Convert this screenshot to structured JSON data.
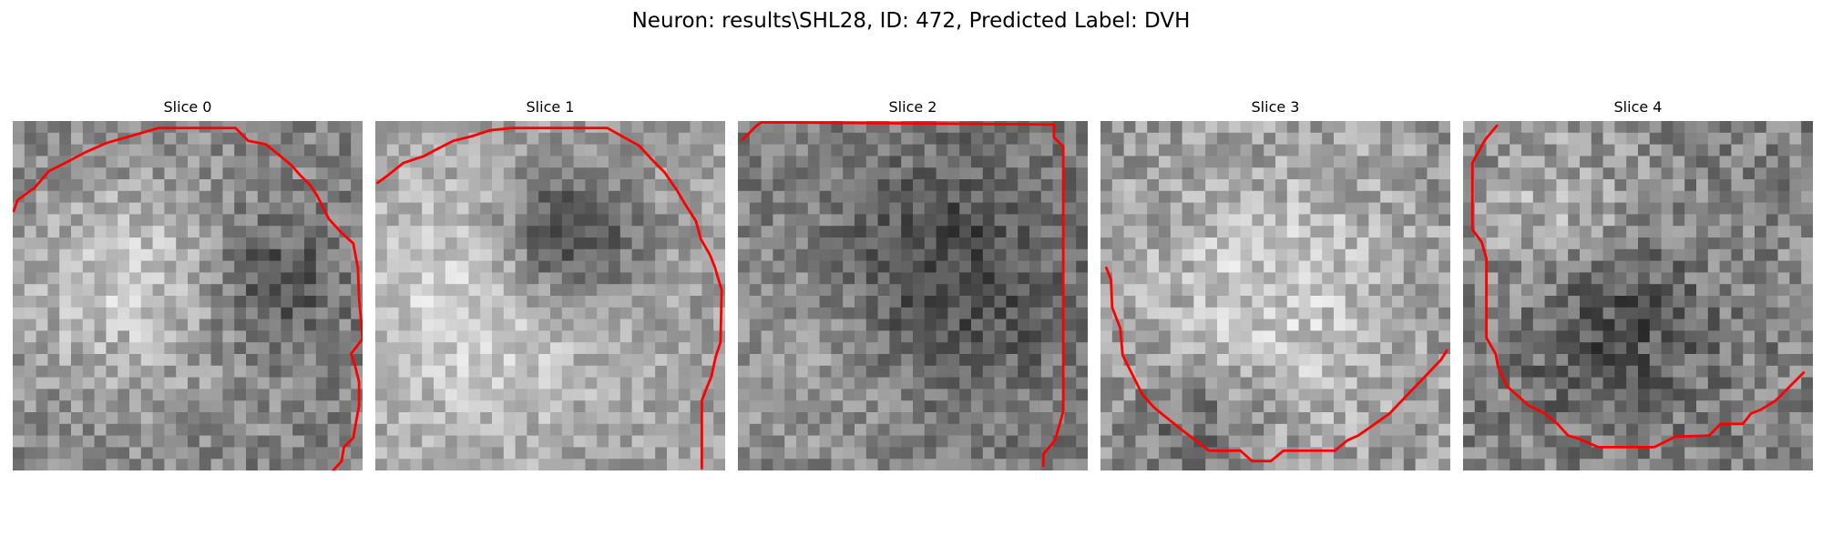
{
  "title": "Neuron: results\\SHL28, ID: 472, Predicted Label: DVH",
  "panels": [
    {
      "label": "Slice 0",
      "contour_color": "#ff0000",
      "image": {
        "cells": 30,
        "bright_center": [
          0.32,
          0.47
        ],
        "bright_radius": 0.23,
        "bright_level": 0.78,
        "dark_center": [
          0.74,
          0.47
        ],
        "dark_radius": 0.13,
        "dark_level": 0.28,
        "background_level": 0.52,
        "noise": 0.32,
        "seed": 17
      },
      "contour": [
        [
          1,
          77
        ],
        [
          4,
          68
        ],
        [
          19,
          57
        ],
        [
          31,
          43
        ],
        [
          43,
          37
        ],
        [
          62,
          27
        ],
        [
          80,
          19
        ],
        [
          125,
          6
        ],
        [
          191,
          6
        ],
        [
          202,
          17
        ],
        [
          217,
          20
        ],
        [
          227,
          28
        ],
        [
          239,
          38
        ],
        [
          247,
          47
        ],
        [
          255,
          55
        ],
        [
          261,
          64
        ],
        [
          266,
          74
        ],
        [
          271,
          84
        ],
        [
          282,
          96
        ],
        [
          292,
          105
        ],
        [
          296,
          126
        ],
        [
          297,
          152
        ],
        [
          300,
          187
        ],
        [
          290,
          200
        ],
        [
          293,
          208
        ],
        [
          297,
          224
        ],
        [
          297,
          244
        ],
        [
          292,
          272
        ],
        [
          284,
          280
        ],
        [
          282,
          292
        ],
        [
          273,
          302
        ]
      ]
    },
    {
      "label": "Slice 1",
      "contour_color": "#ff0000",
      "image": {
        "cells": 30,
        "bright_center": [
          0.3,
          0.52
        ],
        "bright_radius": 0.27,
        "bright_level": 0.84,
        "dark_center": [
          0.55,
          0.33
        ],
        "dark_radius": 0.14,
        "dark_level": 0.18,
        "background_level": 0.62,
        "noise": 0.28,
        "seed": 29
      },
      "contour": [
        [
          2,
          53
        ],
        [
          9,
          48
        ],
        [
          24,
          36
        ],
        [
          42,
          30
        ],
        [
          53,
          24
        ],
        [
          67,
          17
        ],
        [
          83,
          13
        ],
        [
          98,
          8
        ],
        [
          117,
          6
        ],
        [
          199,
          6
        ],
        [
          215,
          15
        ],
        [
          226,
          21
        ],
        [
          239,
          35
        ],
        [
          248,
          44
        ],
        [
          259,
          60
        ],
        [
          266,
          72
        ],
        [
          275,
          86
        ],
        [
          279,
          101
        ],
        [
          287,
          115
        ],
        [
          291,
          125
        ],
        [
          297,
          145
        ],
        [
          296,
          190
        ],
        [
          292,
          202
        ],
        [
          288,
          220
        ],
        [
          285,
          227
        ],
        [
          280,
          240
        ],
        [
          280,
          298
        ]
      ]
    },
    {
      "label": "Slice 2",
      "contour_color": "#ff0000",
      "image": {
        "cells": 30,
        "bright_center": [
          0.22,
          0.7
        ],
        "bright_radius": 0.22,
        "bright_level": 0.62,
        "dark_center": [
          0.61,
          0.45
        ],
        "dark_radius": 0.23,
        "dark_level": 0.26,
        "background_level": 0.5,
        "noise": 0.3,
        "seed": 41
      },
      "contour": [
        [
          4,
          16
        ],
        [
          15,
          5
        ],
        [
          20,
          1
        ],
        [
          271,
          3
        ],
        [
          271,
          14
        ],
        [
          279,
          22
        ],
        [
          279,
          249
        ],
        [
          276,
          260
        ],
        [
          272,
          274
        ],
        [
          262,
          286
        ],
        [
          262,
          296
        ]
      ]
    },
    {
      "label": "Slice 3",
      "contour_color": "#ff0000",
      "image": {
        "cells": 30,
        "bright_center": [
          0.5,
          0.53
        ],
        "bright_radius": 0.29,
        "bright_level": 0.8,
        "dark_center": [
          0.28,
          0.88
        ],
        "dark_radius": 0.14,
        "dark_level": 0.36,
        "background_level": 0.58,
        "noise": 0.34,
        "seed": 53
      },
      "contour": [
        [
          5,
          126
        ],
        [
          9,
          136
        ],
        [
          10,
          160
        ],
        [
          17,
          178
        ],
        [
          19,
          201
        ],
        [
          27,
          217
        ],
        [
          36,
          235
        ],
        [
          46,
          246
        ],
        [
          67,
          263
        ],
        [
          93,
          283
        ],
        [
          120,
          283
        ],
        [
          130,
          292
        ],
        [
          146,
          292
        ],
        [
          157,
          283
        ],
        [
          201,
          283
        ],
        [
          212,
          274
        ],
        [
          221,
          270
        ],
        [
          234,
          261
        ],
        [
          248,
          251
        ],
        [
          292,
          205
        ],
        [
          297,
          197
        ]
      ]
    },
    {
      "label": "Slice 4",
      "contour_color": "#ff0000",
      "image": {
        "cells": 30,
        "bright_center": [
          0.26,
          0.25
        ],
        "bright_radius": 0.17,
        "bright_level": 0.7,
        "dark_center": [
          0.43,
          0.6
        ],
        "dark_radius": 0.18,
        "dark_level": 0.3,
        "background_level": 0.52,
        "noise": 0.36,
        "seed": 67
      },
      "contour": [
        [
          29,
          4
        ],
        [
          19,
          16
        ],
        [
          8,
          36
        ],
        [
          8,
          93
        ],
        [
          16,
          104
        ],
        [
          20,
          118
        ],
        [
          20,
          186
        ],
        [
          28,
          200
        ],
        [
          30,
          211
        ],
        [
          38,
          228
        ],
        [
          56,
          244
        ],
        [
          70,
          251
        ],
        [
          81,
          260
        ],
        [
          90,
          270
        ],
        [
          100,
          273
        ],
        [
          116,
          280
        ],
        [
          164,
          280
        ],
        [
          182,
          271
        ],
        [
          211,
          270
        ],
        [
          221,
          260
        ],
        [
          240,
          260
        ],
        [
          247,
          251
        ],
        [
          255,
          248
        ],
        [
          268,
          240
        ],
        [
          292,
          216
        ]
      ]
    }
  ]
}
